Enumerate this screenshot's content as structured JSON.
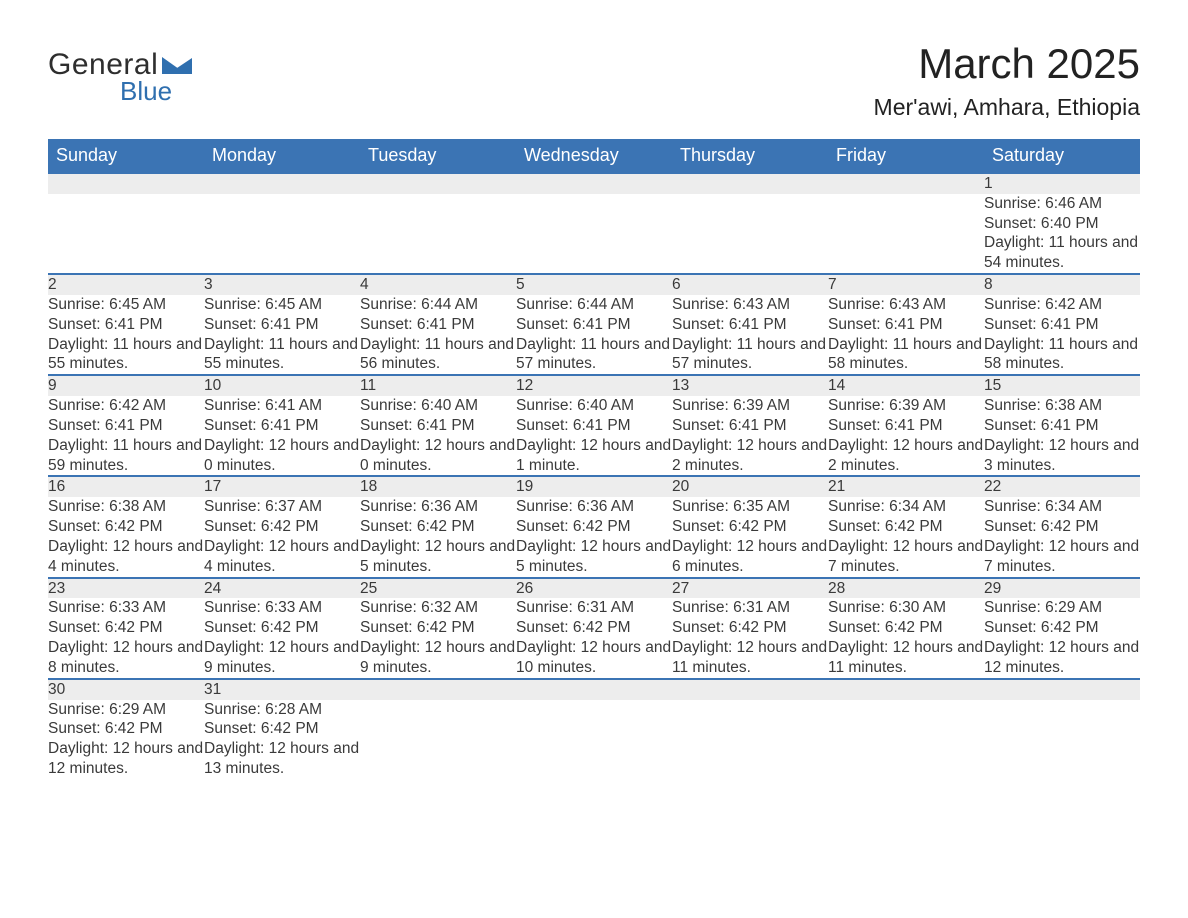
{
  "brand": {
    "word1": "General",
    "word2": "Blue",
    "text_color": "#2e2e2e",
    "accent_color": "#2f6faf"
  },
  "title": "March 2025",
  "location": "Mer'awi, Amhara, Ethiopia",
  "header_bg": "#3b74b4",
  "header_fg": "#ffffff",
  "stripe_bg": "#ededed",
  "divider_color": "#3b74b4",
  "day_headers": [
    "Sunday",
    "Monday",
    "Tuesday",
    "Wednesday",
    "Thursday",
    "Friday",
    "Saturday"
  ],
  "first_weekday_index": 6,
  "days": [
    {
      "n": 1,
      "sunrise": "6:46 AM",
      "sunset": "6:40 PM",
      "daylight": "11 hours and 54 minutes."
    },
    {
      "n": 2,
      "sunrise": "6:45 AM",
      "sunset": "6:41 PM",
      "daylight": "11 hours and 55 minutes."
    },
    {
      "n": 3,
      "sunrise": "6:45 AM",
      "sunset": "6:41 PM",
      "daylight": "11 hours and 55 minutes."
    },
    {
      "n": 4,
      "sunrise": "6:44 AM",
      "sunset": "6:41 PM",
      "daylight": "11 hours and 56 minutes."
    },
    {
      "n": 5,
      "sunrise": "6:44 AM",
      "sunset": "6:41 PM",
      "daylight": "11 hours and 57 minutes."
    },
    {
      "n": 6,
      "sunrise": "6:43 AM",
      "sunset": "6:41 PM",
      "daylight": "11 hours and 57 minutes."
    },
    {
      "n": 7,
      "sunrise": "6:43 AM",
      "sunset": "6:41 PM",
      "daylight": "11 hours and 58 minutes."
    },
    {
      "n": 8,
      "sunrise": "6:42 AM",
      "sunset": "6:41 PM",
      "daylight": "11 hours and 58 minutes."
    },
    {
      "n": 9,
      "sunrise": "6:42 AM",
      "sunset": "6:41 PM",
      "daylight": "11 hours and 59 minutes."
    },
    {
      "n": 10,
      "sunrise": "6:41 AM",
      "sunset": "6:41 PM",
      "daylight": "12 hours and 0 minutes."
    },
    {
      "n": 11,
      "sunrise": "6:40 AM",
      "sunset": "6:41 PM",
      "daylight": "12 hours and 0 minutes."
    },
    {
      "n": 12,
      "sunrise": "6:40 AM",
      "sunset": "6:41 PM",
      "daylight": "12 hours and 1 minute."
    },
    {
      "n": 13,
      "sunrise": "6:39 AM",
      "sunset": "6:41 PM",
      "daylight": "12 hours and 2 minutes."
    },
    {
      "n": 14,
      "sunrise": "6:39 AM",
      "sunset": "6:41 PM",
      "daylight": "12 hours and 2 minutes."
    },
    {
      "n": 15,
      "sunrise": "6:38 AM",
      "sunset": "6:41 PM",
      "daylight": "12 hours and 3 minutes."
    },
    {
      "n": 16,
      "sunrise": "6:38 AM",
      "sunset": "6:42 PM",
      "daylight": "12 hours and 4 minutes."
    },
    {
      "n": 17,
      "sunrise": "6:37 AM",
      "sunset": "6:42 PM",
      "daylight": "12 hours and 4 minutes."
    },
    {
      "n": 18,
      "sunrise": "6:36 AM",
      "sunset": "6:42 PM",
      "daylight": "12 hours and 5 minutes."
    },
    {
      "n": 19,
      "sunrise": "6:36 AM",
      "sunset": "6:42 PM",
      "daylight": "12 hours and 5 minutes."
    },
    {
      "n": 20,
      "sunrise": "6:35 AM",
      "sunset": "6:42 PM",
      "daylight": "12 hours and 6 minutes."
    },
    {
      "n": 21,
      "sunrise": "6:34 AM",
      "sunset": "6:42 PM",
      "daylight": "12 hours and 7 minutes."
    },
    {
      "n": 22,
      "sunrise": "6:34 AM",
      "sunset": "6:42 PM",
      "daylight": "12 hours and 7 minutes."
    },
    {
      "n": 23,
      "sunrise": "6:33 AM",
      "sunset": "6:42 PM",
      "daylight": "12 hours and 8 minutes."
    },
    {
      "n": 24,
      "sunrise": "6:33 AM",
      "sunset": "6:42 PM",
      "daylight": "12 hours and 9 minutes."
    },
    {
      "n": 25,
      "sunrise": "6:32 AM",
      "sunset": "6:42 PM",
      "daylight": "12 hours and 9 minutes."
    },
    {
      "n": 26,
      "sunrise": "6:31 AM",
      "sunset": "6:42 PM",
      "daylight": "12 hours and 10 minutes."
    },
    {
      "n": 27,
      "sunrise": "6:31 AM",
      "sunset": "6:42 PM",
      "daylight": "12 hours and 11 minutes."
    },
    {
      "n": 28,
      "sunrise": "6:30 AM",
      "sunset": "6:42 PM",
      "daylight": "12 hours and 11 minutes."
    },
    {
      "n": 29,
      "sunrise": "6:29 AM",
      "sunset": "6:42 PM",
      "daylight": "12 hours and 12 minutes."
    },
    {
      "n": 30,
      "sunrise": "6:29 AM",
      "sunset": "6:42 PM",
      "daylight": "12 hours and 12 minutes."
    },
    {
      "n": 31,
      "sunrise": "6:28 AM",
      "sunset": "6:42 PM",
      "daylight": "12 hours and 13 minutes."
    }
  ],
  "labels": {
    "sunrise": "Sunrise: ",
    "sunset": "Sunset: ",
    "daylight": "Daylight: "
  }
}
